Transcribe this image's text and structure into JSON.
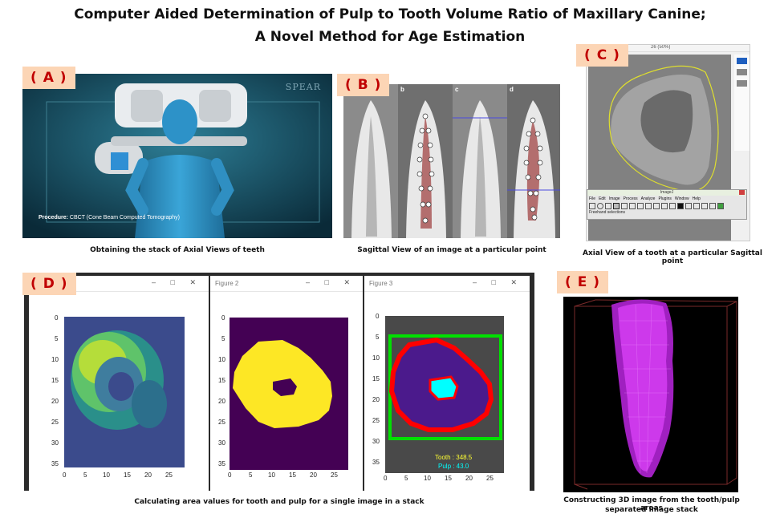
{
  "title_line1": "Computer Aided Determination of Pulp to Tooth Volume Ratio of Maxillary Canine;",
  "title_line2": "A Novel Method for Age Estimation",
  "panels": {
    "a": {
      "tag": "( A )",
      "caption": "Obtaining the stack of Axial Views of teeth",
      "watermark": "SPEAR",
      "procedure_label": "Procedure:",
      "procedure_text": "CBCT (Cone Beam Computed Tomography)"
    },
    "b": {
      "tag": "( B )",
      "caption": "Sagittal View of an image at a particular point",
      "sub_labels": [
        "a",
        "b",
        "c",
        "d"
      ]
    },
    "c": {
      "tag": "( C )",
      "caption": "Axial View of a tooth at a particular Sagittal point",
      "window_title": "26 (50%)",
      "imagej_title": "ImageJ",
      "imagej_menu": [
        "File",
        "Edit",
        "Image",
        "Process",
        "Analyze",
        "Plugins",
        "Window",
        "Help"
      ],
      "imagej_status": "Freehand selections"
    },
    "d": {
      "tag": "( D )",
      "caption": "Calculating area values for tooth and pulp for a single image in a stack",
      "fig2_title": "Figure 2",
      "fig3_title": "Figure 3",
      "y_ticks": [
        "0",
        "5",
        "10",
        "15",
        "20",
        "25",
        "30",
        "35"
      ],
      "x_ticks": [
        "0",
        "5",
        "10",
        "15",
        "20",
        "25"
      ],
      "tooth_label": "Tooth : 348.5",
      "pulp_label": "Pulp : 43.0"
    },
    "e": {
      "tag": "( E )",
      "caption_line1": "Constructing 3D image from the tooth/pulp areas",
      "caption_line2": "separated image stack"
    }
  },
  "colors": {
    "tag_bg": "#fcd5b5",
    "tag_text": "#c00000",
    "viridis_dark": "#440154",
    "viridis_yellow": "#fde725",
    "tooth_edge": "#ff0000",
    "box": "#00e000",
    "pulp": "#00ffff",
    "mesh": "#d23cf0",
    "tooth_text": "#ffff33"
  }
}
